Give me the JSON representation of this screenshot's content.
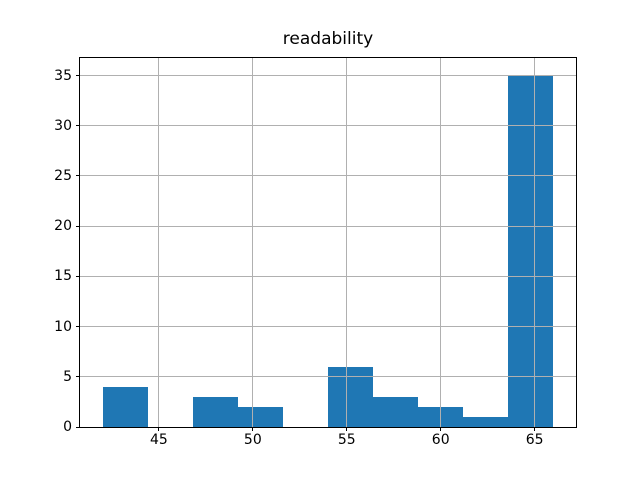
{
  "chart_data": {
    "type": "bar",
    "subtype": "histogram",
    "title": "readability",
    "bin_edges": [
      42.0,
      44.4,
      46.8,
      49.2,
      51.6,
      54.0,
      56.4,
      58.8,
      61.2,
      63.6,
      66.0
    ],
    "counts": [
      4,
      0,
      3,
      2,
      0,
      6,
      3,
      2,
      1,
      35
    ],
    "xticks": [
      45,
      50,
      55,
      60,
      65
    ],
    "yticks": [
      0,
      5,
      10,
      15,
      20,
      25,
      30,
      35
    ],
    "xlim": [
      40.8,
      67.2
    ],
    "ylim": [
      0,
      36.75
    ],
    "grid": true,
    "legend_position": "none",
    "colors": {
      "bar": "#1f77b4",
      "grid": "#b0b0b0",
      "spine": "#000000",
      "text": "#000000",
      "background": "#ffffff"
    }
  }
}
